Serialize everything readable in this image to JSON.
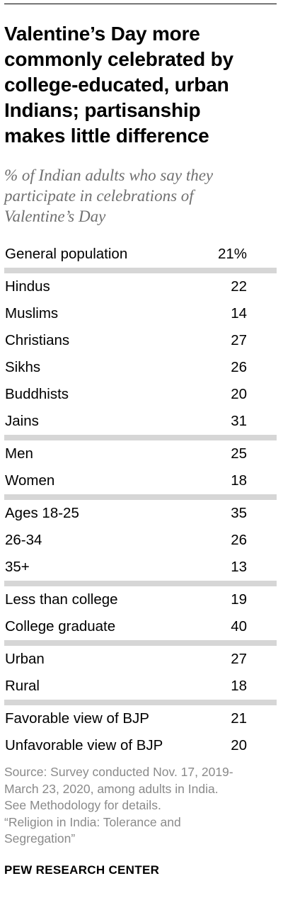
{
  "header": {
    "title": "Valentine’s Day more\ncommonly celebrated by\ncollege-educated, urban\nIndians; partisanship\nmakes little difference",
    "subtitle": "% of Indian adults who say they\nparticipate in celebrations of\nValentine’s Day"
  },
  "chart_data": {
    "type": "table",
    "title": "Valentine’s Day more commonly celebrated by college-educated, urban Indians; partisanship makes little difference",
    "subtitle": "% of Indian adults who say they participate in celebrations of Valentine’s Day",
    "groups": [
      {
        "rows": [
          {
            "label": "General population",
            "value": "21%"
          }
        ]
      },
      {
        "rows": [
          {
            "label": "Hindus",
            "value": "22"
          },
          {
            "label": "Muslims",
            "value": "14"
          },
          {
            "label": "Christians",
            "value": "27"
          },
          {
            "label": "Sikhs",
            "value": "26"
          },
          {
            "label": "Buddhists",
            "value": "20"
          },
          {
            "label": "Jains",
            "value": "31"
          }
        ]
      },
      {
        "rows": [
          {
            "label": "Men",
            "value": "25"
          },
          {
            "label": "Women",
            "value": "18"
          }
        ]
      },
      {
        "rows": [
          {
            "label": "Ages 18-25",
            "value": "35"
          },
          {
            "label": "26-34",
            "value": "26"
          },
          {
            "label": "35+",
            "value": "13"
          }
        ]
      },
      {
        "rows": [
          {
            "label": "Less than college",
            "value": "19"
          },
          {
            "label": "College graduate",
            "value": "40"
          }
        ]
      },
      {
        "rows": [
          {
            "label": "Urban",
            "value": "27"
          },
          {
            "label": "Rural",
            "value": "18"
          }
        ]
      },
      {
        "rows": [
          {
            "label": "Favorable view of BJP",
            "value": "21"
          },
          {
            "label": "Unfavorable view of BJP",
            "value": "20"
          }
        ]
      }
    ]
  },
  "footer": {
    "source": "Source: Survey conducted Nov. 17, 2019-\nMarch 23, 2020, among adults in India.\nSee Methodology for details.\n“Religion in India: Tolerance and\nSegregation”",
    "brand": "PEW RESEARCH CENTER"
  },
  "colors": {
    "separator": "#d6d6d6",
    "subtitle": "#707070",
    "source": "#8a8a8a"
  }
}
